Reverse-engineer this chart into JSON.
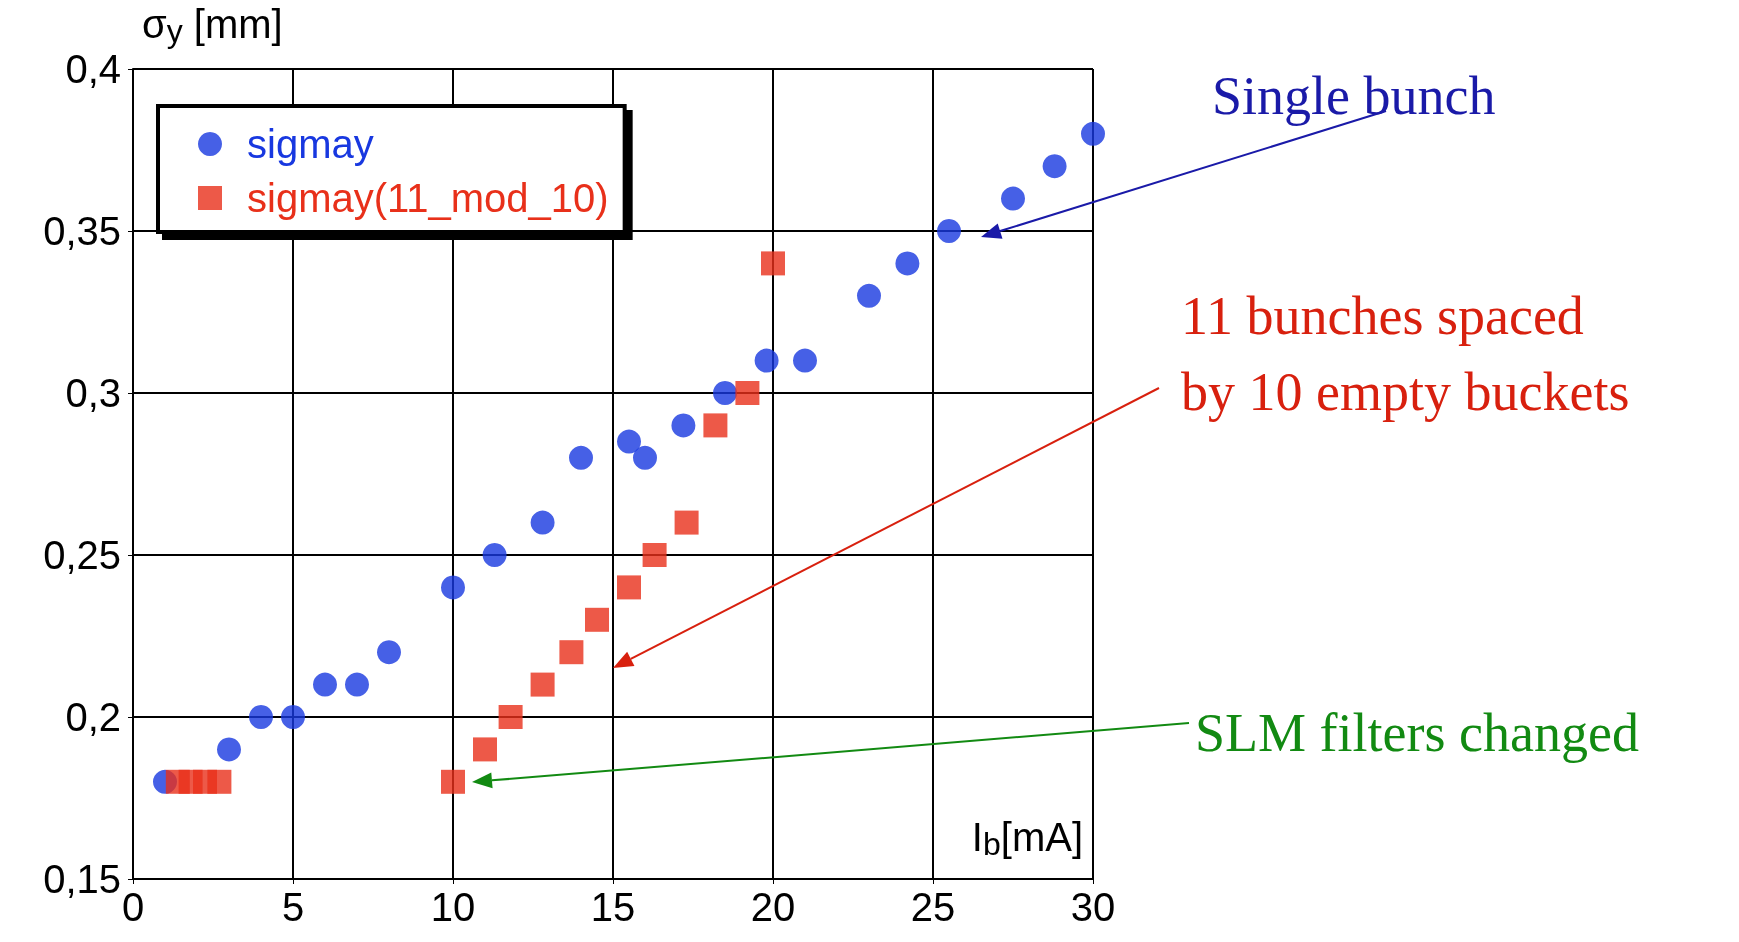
{
  "chart_data": {
    "type": "scatter",
    "xlabel": "I$_{b}$[mA]",
    "ylabel": "σ$_{y}$ [mm]",
    "xlim": [
      0,
      30
    ],
    "xticks": [
      0,
      5,
      10,
      15,
      20,
      25,
      30
    ],
    "ylim": [
      0.15,
      0.4
    ],
    "yticks": [
      {
        "value": 0.15,
        "label": "0,15"
      },
      {
        "value": 0.2,
        "label": "0,2"
      },
      {
        "value": 0.25,
        "label": "0,25"
      },
      {
        "value": 0.3,
        "label": "0,3"
      },
      {
        "value": 0.35,
        "label": "0,35"
      },
      {
        "value": 0.4,
        "label": "0,4"
      }
    ],
    "grid": true,
    "legend": "top left",
    "series": [
      {
        "name": "sigmay",
        "color": "#1838e0",
        "marker": "circle",
        "x": [
          1,
          3,
          4,
          5,
          6,
          7,
          8,
          10,
          11.3,
          12.8,
          14,
          15.5,
          16,
          17.2,
          18.5,
          19.8,
          21,
          23,
          24.2,
          25.5,
          27.5,
          28.8,
          30
        ],
        "values": [
          0.18,
          0.19,
          0.2,
          0.2,
          0.21,
          0.21,
          0.22,
          0.24,
          0.25,
          0.26,
          0.28,
          0.285,
          0.28,
          0.29,
          0.3,
          0.31,
          0.31,
          0.33,
          0.34,
          0.35,
          0.36,
          0.37,
          0.38
        ]
      },
      {
        "name": "sigmay(11_mod_10)",
        "color": "#e8301a",
        "marker": "square",
        "x": [
          1.4,
          1.8,
          2.25,
          2.7,
          10,
          11,
          11.8,
          12.8,
          13.7,
          14.5,
          15.5,
          16.3,
          17.3,
          18.2,
          19.2,
          20
        ],
        "values": [
          0.18,
          0.18,
          0.18,
          0.18,
          0.18,
          0.19,
          0.2,
          0.21,
          0.22,
          0.23,
          0.24,
          0.25,
          0.26,
          0.29,
          0.3,
          0.34
        ]
      }
    ],
    "annotations": [
      "Single bunch",
      "11 bunches spaced\nby 10 empty buckets",
      "SLM filters changed"
    ]
  }
}
